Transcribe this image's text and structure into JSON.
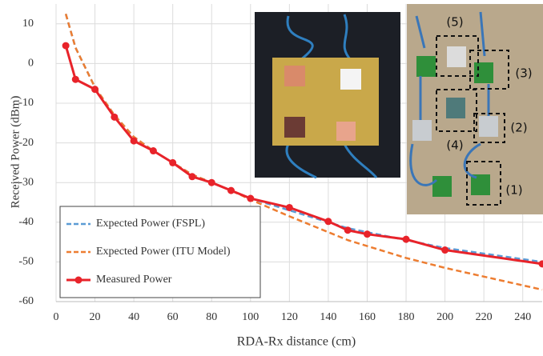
{
  "chart_data": {
    "type": "line",
    "x_label": "RDA-Rx distance (cm)",
    "y_label": "Received Power (dBm)",
    "x": [
      5,
      10,
      20,
      30,
      40,
      50,
      60,
      70,
      80,
      90,
      100,
      120,
      140,
      150,
      160,
      180,
      200,
      250
    ],
    "series": [
      {
        "name": "Expected Power (FSPL)",
        "color": "#5b9bd5",
        "dashed": true,
        "markers": false,
        "values": [
          12.5,
          4,
          -6,
          -13,
          -18.5,
          -22,
          -25,
          -28,
          -30,
          -32,
          -34,
          -37,
          -40,
          -41.5,
          -42.5,
          -44.5,
          -46.5,
          -50
        ]
      },
      {
        "name": "Expected Power (ITU Model)",
        "color": "#ed7d31",
        "dashed": true,
        "markers": false,
        "values": [
          12.5,
          4,
          -6,
          -13,
          -18.5,
          -22,
          -25,
          -28,
          -30,
          -32,
          -34.3,
          -38.5,
          -42.5,
          -44.5,
          -46,
          -49,
          -51.5,
          -57
        ]
      },
      {
        "name": "Measured Power",
        "color": "#e8232a",
        "dashed": false,
        "markers": true,
        "values": [
          4.5,
          -4,
          -6.5,
          -13.5,
          -19.5,
          -22,
          -25,
          -28.5,
          -30,
          -32,
          -34,
          -36.3,
          -39.8,
          -42,
          -43,
          -44.3,
          -47,
          -50.5
        ]
      }
    ],
    "xlim": [
      0,
      250
    ],
    "xticks": [
      0,
      20,
      40,
      60,
      80,
      100,
      120,
      140,
      160,
      180,
      200,
      220,
      240
    ],
    "ylim": [
      -60,
      15
    ],
    "yticks": [
      -60,
      -50,
      -40,
      -30,
      -20,
      -10,
      0,
      10
    ],
    "grid": true,
    "legend": "lower left",
    "annotations": [
      "(5)",
      "(3)",
      "(2)",
      "(4)",
      "(1)"
    ]
  }
}
